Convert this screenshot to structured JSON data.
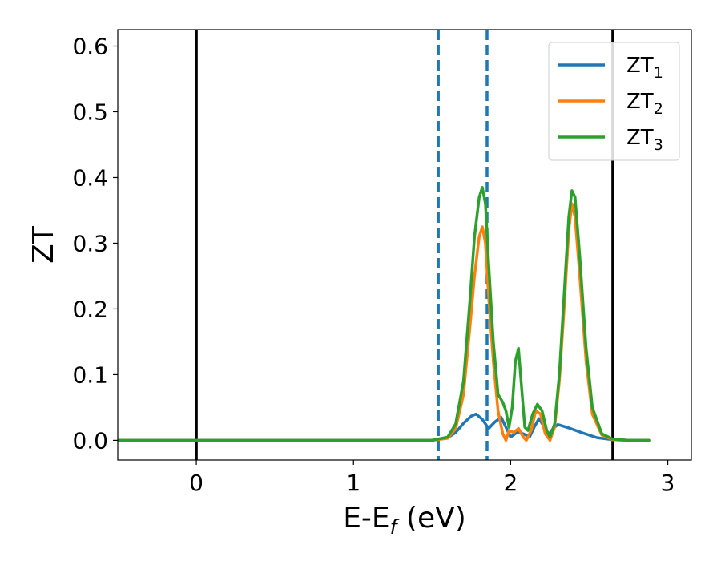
{
  "chart_data": {
    "type": "line",
    "xlabel_main": "E-E",
    "xlabel_sub": "f",
    "xlabel_unit": " (eV)",
    "ylabel": "ZT",
    "xlim": [
      -0.5,
      3.15
    ],
    "ylim": [
      -0.03,
      0.625
    ],
    "xticks": [
      0,
      1,
      2,
      3
    ],
    "yticks": [
      0.0,
      0.1,
      0.2,
      0.3,
      0.4,
      0.5,
      0.6
    ],
    "ytick_labels": [
      "0.0",
      "0.1",
      "0.2",
      "0.3",
      "0.4",
      "0.5",
      "0.6"
    ],
    "legend_position": "top-right",
    "vertical_lines": [
      {
        "x": 0.0,
        "style": "solid",
        "color": "#000000"
      },
      {
        "x": 2.65,
        "style": "solid",
        "color": "#000000"
      },
      {
        "x": 1.54,
        "style": "dashed",
        "color": "#1f77b4"
      },
      {
        "x": 1.85,
        "style": "dashed",
        "color": "#1f77b4"
      }
    ],
    "series": [
      {
        "name": "ZT",
        "subscript": "1",
        "color": "#1f77b4",
        "x": [
          -0.5,
          1.5,
          1.6,
          1.65,
          1.7,
          1.75,
          1.78,
          1.82,
          1.86,
          1.9,
          1.94,
          1.97,
          2.0,
          2.04,
          2.08,
          2.12,
          2.15,
          2.18,
          2.21,
          2.24,
          2.27,
          2.3,
          2.33,
          2.38,
          2.45,
          2.55,
          2.65,
          2.75,
          2.88
        ],
        "y": [
          0.0,
          0.0,
          0.004,
          0.012,
          0.026,
          0.037,
          0.04,
          0.032,
          0.018,
          0.028,
          0.035,
          0.02,
          0.005,
          0.012,
          0.01,
          0.005,
          0.02,
          0.033,
          0.022,
          0.008,
          0.018,
          0.024,
          0.022,
          0.018,
          0.012,
          0.004,
          0.001,
          0.0,
          0.0
        ]
      },
      {
        "name": "ZT",
        "subscript": "2",
        "color": "#ff7f0e",
        "x": [
          -0.5,
          1.5,
          1.6,
          1.65,
          1.7,
          1.74,
          1.77,
          1.8,
          1.82,
          1.84,
          1.86,
          1.89,
          1.92,
          1.95,
          1.97,
          1.99,
          2.02,
          2.05,
          2.08,
          2.1,
          2.13,
          2.16,
          2.19,
          2.22,
          2.25,
          2.28,
          2.31,
          2.34,
          2.37,
          2.39,
          2.41,
          2.44,
          2.48,
          2.52,
          2.58,
          2.65,
          2.75,
          2.88
        ],
        "y": [
          0.0,
          0.0,
          0.003,
          0.018,
          0.07,
          0.17,
          0.25,
          0.31,
          0.325,
          0.3,
          0.22,
          0.12,
          0.045,
          0.01,
          0.0,
          0.015,
          0.012,
          0.018,
          0.005,
          0.0,
          0.015,
          0.045,
          0.04,
          0.01,
          0.0,
          0.02,
          0.09,
          0.2,
          0.32,
          0.36,
          0.34,
          0.25,
          0.12,
          0.04,
          0.008,
          0.001,
          0.0,
          0.0
        ]
      },
      {
        "name": "ZT",
        "subscript": "3",
        "color": "#2ca02c",
        "x": [
          -0.5,
          1.5,
          1.6,
          1.65,
          1.7,
          1.74,
          1.77,
          1.8,
          1.82,
          1.84,
          1.86,
          1.89,
          1.92,
          1.95,
          1.97,
          1.99,
          2.01,
          2.03,
          2.05,
          2.07,
          2.09,
          2.11,
          2.14,
          2.17,
          2.2,
          2.23,
          2.25,
          2.28,
          2.31,
          2.34,
          2.37,
          2.39,
          2.41,
          2.44,
          2.48,
          2.52,
          2.58,
          2.65,
          2.75,
          2.88
        ],
        "y": [
          0.0,
          0.0,
          0.005,
          0.025,
          0.09,
          0.21,
          0.31,
          0.37,
          0.385,
          0.36,
          0.27,
          0.15,
          0.07,
          0.058,
          0.045,
          0.02,
          0.05,
          0.12,
          0.14,
          0.08,
          0.02,
          0.015,
          0.04,
          0.055,
          0.045,
          0.015,
          0.005,
          0.025,
          0.1,
          0.22,
          0.34,
          0.38,
          0.37,
          0.28,
          0.14,
          0.05,
          0.01,
          0.002,
          0.0,
          0.0
        ]
      }
    ]
  }
}
